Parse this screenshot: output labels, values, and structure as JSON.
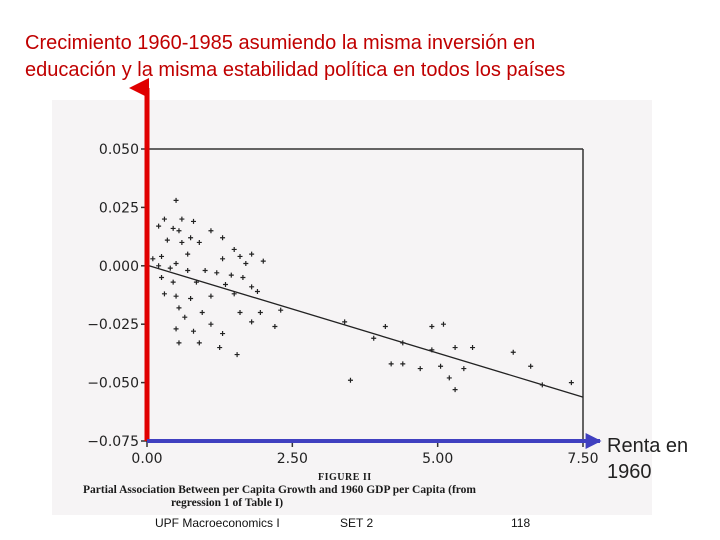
{
  "slide": {
    "title_line1": "Crecimiento 1960-1985 asumiendo la misma inversión en",
    "title_line2": "educación y la misma estabilidad política en todos los países",
    "title_color": "#c00000",
    "renta_line1": "Renta en",
    "renta_line2": "1960",
    "footer_course": "UPF Macroeconomics I",
    "footer_set": "SET 2",
    "footer_page": "118"
  },
  "figure": {
    "label": "FIGURE II",
    "caption_line1": "Partial Association Between per Capita Growth and 1960 GDP per Capita (from",
    "caption_line2": "regression 1 of Table I)"
  },
  "chart_data": {
    "type": "scatter",
    "xlim": [
      0,
      7.5
    ],
    "ylim": [
      -0.075,
      0.05
    ],
    "x_ticks": [
      "0.00",
      "2.50",
      "5.00",
      "7.50"
    ],
    "y_ticks": [
      "0.050",
      "0.025",
      "0.000",
      "−0.025",
      "−0.050",
      "−0.075"
    ],
    "x_tick_values": [
      0,
      2.5,
      5,
      7.5
    ],
    "y_tick_values": [
      0.05,
      0.025,
      0,
      -0.025,
      -0.05,
      -0.075
    ],
    "marker": "+",
    "points": [
      [
        0.5,
        0.028
      ],
      [
        0.3,
        0.02
      ],
      [
        0.6,
        0.02
      ],
      [
        0.8,
        0.019
      ],
      [
        0.2,
        0.017
      ],
      [
        0.45,
        0.016
      ],
      [
        0.55,
        0.015
      ],
      [
        0.75,
        0.012
      ],
      [
        1.1,
        0.015
      ],
      [
        1.3,
        0.012
      ],
      [
        0.35,
        0.011
      ],
      [
        0.6,
        0.01
      ],
      [
        0.9,
        0.01
      ],
      [
        1.5,
        0.007
      ],
      [
        1.8,
        0.005
      ],
      [
        1.6,
        0.004
      ],
      [
        0.25,
        0.004
      ],
      [
        0.1,
        0.003
      ],
      [
        0.7,
        0.005
      ],
      [
        2.0,
        0.002
      ],
      [
        1.3,
        0.003
      ],
      [
        1.7,
        0.001
      ],
      [
        0.2,
        0.0
      ],
      [
        0.4,
        -0.001
      ],
      [
        0.5,
        0.001
      ],
      [
        0.7,
        -0.002
      ],
      [
        1.0,
        -0.002
      ],
      [
        1.2,
        -0.003
      ],
      [
        1.45,
        -0.004
      ],
      [
        1.65,
        -0.005
      ],
      [
        0.25,
        -0.005
      ],
      [
        0.45,
        -0.007
      ],
      [
        0.85,
        -0.007
      ],
      [
        1.35,
        -0.008
      ],
      [
        1.8,
        -0.009
      ],
      [
        0.3,
        -0.012
      ],
      [
        0.5,
        -0.013
      ],
      [
        0.75,
        -0.014
      ],
      [
        1.1,
        -0.013
      ],
      [
        1.5,
        -0.012
      ],
      [
        1.9,
        -0.011
      ],
      [
        0.55,
        -0.018
      ],
      [
        0.95,
        -0.02
      ],
      [
        1.6,
        -0.02
      ],
      [
        1.95,
        -0.02
      ],
      [
        2.3,
        -0.019
      ],
      [
        0.65,
        -0.022
      ],
      [
        1.1,
        -0.025
      ],
      [
        1.8,
        -0.024
      ],
      [
        2.2,
        -0.026
      ],
      [
        0.5,
        -0.027
      ],
      [
        0.8,
        -0.028
      ],
      [
        1.3,
        -0.029
      ],
      [
        0.55,
        -0.033
      ],
      [
        0.9,
        -0.033
      ],
      [
        1.25,
        -0.035
      ],
      [
        1.55,
        -0.038
      ],
      [
        3.4,
        -0.024
      ],
      [
        4.1,
        -0.026
      ],
      [
        4.9,
        -0.026
      ],
      [
        5.1,
        -0.025
      ],
      [
        3.9,
        -0.031
      ],
      [
        4.4,
        -0.033
      ],
      [
        5.3,
        -0.035
      ],
      [
        4.9,
        -0.036
      ],
      [
        5.6,
        -0.035
      ],
      [
        6.3,
        -0.037
      ],
      [
        4.2,
        -0.042
      ],
      [
        4.4,
        -0.042
      ],
      [
        4.7,
        -0.044
      ],
      [
        5.05,
        -0.043
      ],
      [
        5.45,
        -0.044
      ],
      [
        5.2,
        -0.048
      ],
      [
        3.5,
        -0.049
      ],
      [
        6.6,
        -0.043
      ],
      [
        6.8,
        -0.051
      ],
      [
        7.3,
        -0.05
      ],
      [
        5.3,
        -0.053
      ]
    ],
    "trend_line": {
      "x": [
        0,
        7.5
      ],
      "y": [
        0.0003,
        -0.0562
      ]
    }
  }
}
